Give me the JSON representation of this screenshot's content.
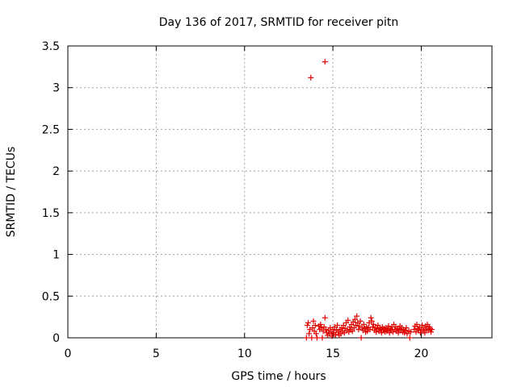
{
  "chart_data": {
    "type": "scatter",
    "title": "Day 136 of 2017, SRMTID for receiver pitn",
    "xlabel": "GPS time / hours",
    "ylabel": "SRMTID / TECUs",
    "xlim": [
      0,
      24
    ],
    "ylim": [
      0,
      3.5
    ],
    "xticks": [
      0,
      5,
      10,
      15,
      20
    ],
    "xtick_labels": [
      "0",
      "5",
      "10",
      "15",
      "20"
    ],
    "yticks": [
      0,
      0.5,
      1,
      1.5,
      2,
      2.5,
      3,
      3.5
    ],
    "ytick_labels": [
      "0",
      "0.5",
      "1",
      "1.5",
      "2",
      "2.5",
      "3",
      "3.5"
    ],
    "grid": true,
    "marker": "+",
    "series": [
      {
        "name": "SRMTID",
        "color": "#e00000",
        "points": [
          [
            13.75,
            3.12
          ],
          [
            14.55,
            3.31
          ],
          [
            13.5,
            0.0
          ],
          [
            13.55,
            0.15
          ],
          [
            13.6,
            0.18
          ],
          [
            13.65,
            0.05
          ],
          [
            13.7,
            0.1
          ],
          [
            13.8,
            0.0
          ],
          [
            13.85,
            0.12
          ],
          [
            13.9,
            0.2
          ],
          [
            13.95,
            0.08
          ],
          [
            14.0,
            0.15
          ],
          [
            14.05,
            0.05
          ],
          [
            14.1,
            0.0
          ],
          [
            14.2,
            0.14
          ],
          [
            14.25,
            0.1
          ],
          [
            14.3,
            0.16
          ],
          [
            14.35,
            0.12
          ],
          [
            14.4,
            0.0
          ],
          [
            14.45,
            0.08
          ],
          [
            14.5,
            0.13
          ],
          [
            14.55,
            0.24
          ],
          [
            14.6,
            0.1
          ],
          [
            14.65,
            0.06
          ],
          [
            14.7,
            0.03
          ],
          [
            14.75,
            0.09
          ],
          [
            14.8,
            0.05
          ],
          [
            14.85,
            0.12
          ],
          [
            14.9,
            0.07
          ],
          [
            14.95,
            0.02
          ],
          [
            15.0,
            0.1
          ],
          [
            15.05,
            0.06
          ],
          [
            15.1,
            0.13
          ],
          [
            15.15,
            0.04
          ],
          [
            15.2,
            0.09
          ],
          [
            15.25,
            0.15
          ],
          [
            15.3,
            0.07
          ],
          [
            15.35,
            0.03
          ],
          [
            15.4,
            0.1
          ],
          [
            15.45,
            0.05
          ],
          [
            15.5,
            0.12
          ],
          [
            15.55,
            0.08
          ],
          [
            15.6,
            0.15
          ],
          [
            15.65,
            0.06
          ],
          [
            15.7,
            0.11
          ],
          [
            15.75,
            0.18
          ],
          [
            15.8,
            0.09
          ],
          [
            15.85,
            0.21
          ],
          [
            15.9,
            0.07
          ],
          [
            15.95,
            0.13
          ],
          [
            16.0,
            0.1
          ],
          [
            16.05,
            0.16
          ],
          [
            16.1,
            0.08
          ],
          [
            16.15,
            0.19
          ],
          [
            16.2,
            0.12
          ],
          [
            16.25,
            0.22
          ],
          [
            16.3,
            0.15
          ],
          [
            16.35,
            0.26
          ],
          [
            16.4,
            0.18
          ],
          [
            16.45,
            0.1
          ],
          [
            16.5,
            0.14
          ],
          [
            16.55,
            0.2
          ],
          [
            16.6,
            0.0
          ],
          [
            16.65,
            0.12
          ],
          [
            16.7,
            0.09
          ],
          [
            16.75,
            0.16
          ],
          [
            16.8,
            0.11
          ],
          [
            16.85,
            0.07
          ],
          [
            16.9,
            0.13
          ],
          [
            16.95,
            0.08
          ],
          [
            17.0,
            0.12
          ],
          [
            17.05,
            0.18
          ],
          [
            17.1,
            0.1
          ],
          [
            17.15,
            0.24
          ],
          [
            17.2,
            0.2
          ],
          [
            17.25,
            0.13
          ],
          [
            17.3,
            0.16
          ],
          [
            17.35,
            0.09
          ],
          [
            17.4,
            0.12
          ],
          [
            17.45,
            0.07
          ],
          [
            17.5,
            0.11
          ],
          [
            17.55,
            0.15
          ],
          [
            17.6,
            0.08
          ],
          [
            17.65,
            0.12
          ],
          [
            17.7,
            0.1
          ],
          [
            17.75,
            0.06
          ],
          [
            17.8,
            0.13
          ],
          [
            17.85,
            0.09
          ],
          [
            17.9,
            0.11
          ],
          [
            17.95,
            0.07
          ],
          [
            18.0,
            0.12
          ],
          [
            18.05,
            0.08
          ],
          [
            18.1,
            0.1
          ],
          [
            18.15,
            0.14
          ],
          [
            18.2,
            0.06
          ],
          [
            18.25,
            0.11
          ],
          [
            18.3,
            0.09
          ],
          [
            18.35,
            0.13
          ],
          [
            18.4,
            0.07
          ],
          [
            18.45,
            0.16
          ],
          [
            18.5,
            0.1
          ],
          [
            18.55,
            0.13
          ],
          [
            18.6,
            0.08
          ],
          [
            18.65,
            0.11
          ],
          [
            18.7,
            0.06
          ],
          [
            18.75,
            0.1
          ],
          [
            18.8,
            0.14
          ],
          [
            18.85,
            0.09
          ],
          [
            18.9,
            0.12
          ],
          [
            18.95,
            0.07
          ],
          [
            19.0,
            0.1
          ],
          [
            19.05,
            0.06
          ],
          [
            19.1,
            0.09
          ],
          [
            19.15,
            0.12
          ],
          [
            19.2,
            0.05
          ],
          [
            19.3,
            0.08
          ],
          [
            19.35,
            0.0
          ],
          [
            19.4,
            0.07
          ],
          [
            19.6,
            0.1
          ],
          [
            19.65,
            0.14
          ],
          [
            19.7,
            0.07
          ],
          [
            19.75,
            0.16
          ],
          [
            19.8,
            0.11
          ],
          [
            19.85,
            0.09
          ],
          [
            19.9,
            0.13
          ],
          [
            19.95,
            0.06
          ],
          [
            20.0,
            0.1
          ],
          [
            20.05,
            0.15
          ],
          [
            20.1,
            0.08
          ],
          [
            20.15,
            0.12
          ],
          [
            20.2,
            0.06
          ],
          [
            20.25,
            0.14
          ],
          [
            20.3,
            0.1
          ],
          [
            20.35,
            0.16
          ],
          [
            20.4,
            0.09
          ],
          [
            20.45,
            0.13
          ],
          [
            20.5,
            0.11
          ],
          [
            20.55,
            0.07
          ],
          [
            20.6,
            0.1
          ]
        ]
      }
    ]
  }
}
